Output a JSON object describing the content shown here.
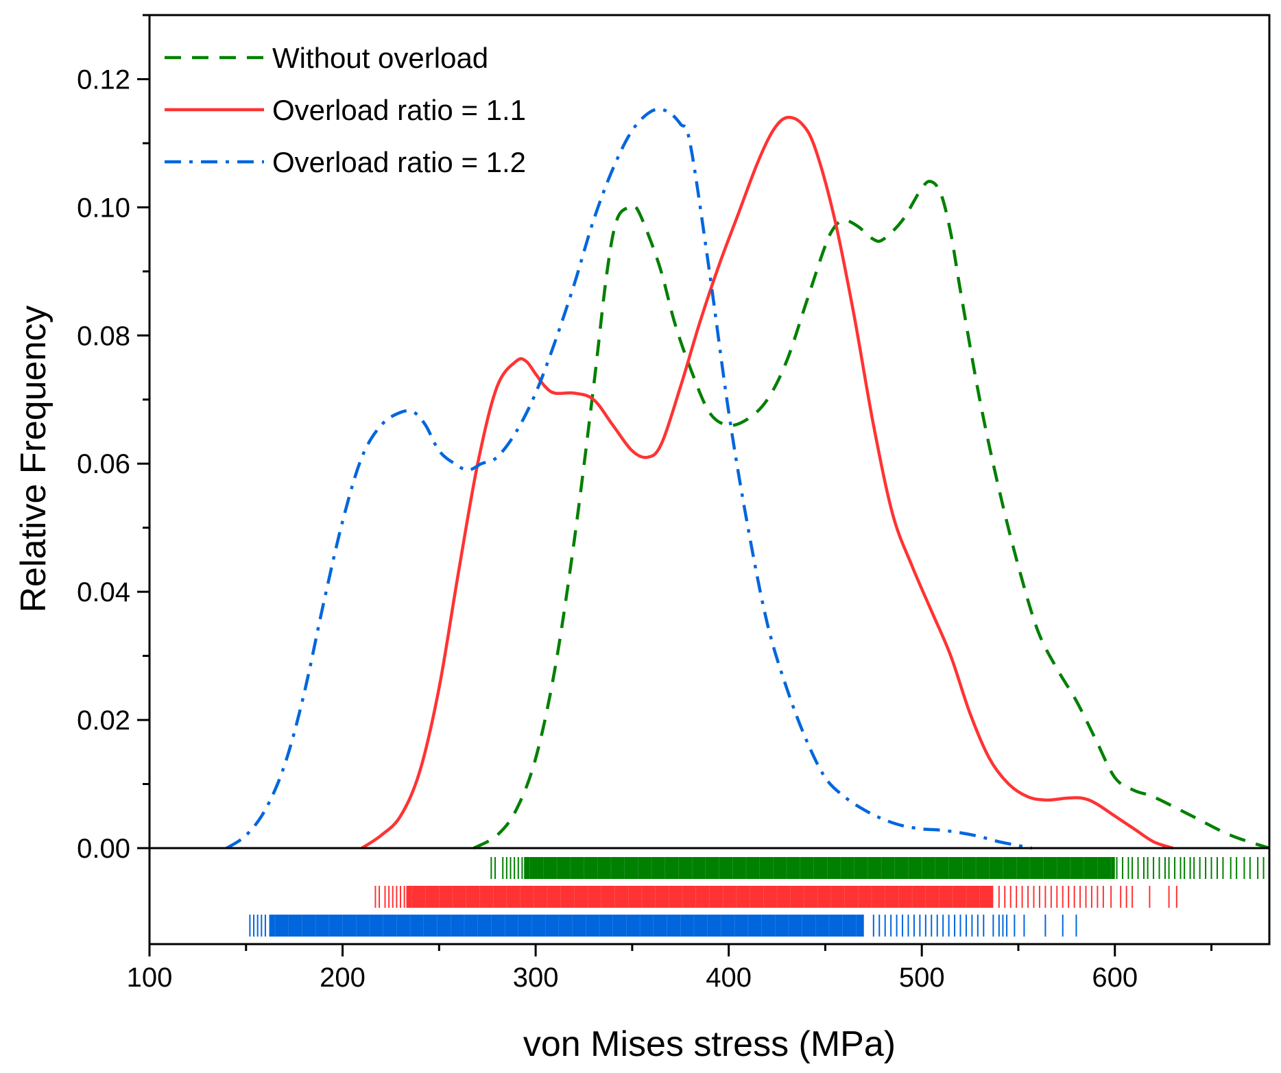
{
  "chart_data": {
    "type": "line",
    "xlabel": "von Mises stress (MPa)",
    "ylabel": "Relative Frequency",
    "xlim": [
      100,
      680
    ],
    "ylim": [
      0,
      0.13
    ],
    "xticks": [
      100,
      200,
      300,
      400,
      500,
      600
    ],
    "xtick_labels": [
      "100",
      "200",
      "300",
      "400",
      "500",
      "600"
    ],
    "yticks": [
      0.0,
      0.02,
      0.04,
      0.06,
      0.08,
      0.1,
      0.12
    ],
    "ytick_labels": [
      "0.00",
      "0.02",
      "0.04",
      "0.06",
      "0.08",
      "0.10",
      "0.12"
    ],
    "legend_position": "top-left",
    "grid": false,
    "series": [
      {
        "name": "Without overload",
        "color": "#008000",
        "style": "dashed",
        "x": [
          268,
          280,
          290,
          300,
          310,
          320,
          330,
          337,
          342,
          348,
          352,
          358,
          365,
          372,
          380,
          390,
          400,
          410,
          420,
          430,
          440,
          450,
          455,
          460,
          467,
          475,
          480,
          490,
          500,
          505,
          510,
          515,
          520,
          530,
          540,
          550,
          560,
          570,
          580,
          590,
          600,
          610,
          620,
          640,
          660,
          680
        ],
        "y": [
          0.0,
          0.002,
          0.006,
          0.014,
          0.028,
          0.048,
          0.072,
          0.09,
          0.098,
          0.1,
          0.1,
          0.096,
          0.09,
          0.082,
          0.075,
          0.068,
          0.066,
          0.067,
          0.07,
          0.076,
          0.085,
          0.094,
          0.097,
          0.098,
          0.097,
          0.095,
          0.095,
          0.098,
          0.103,
          0.104,
          0.102,
          0.096,
          0.087,
          0.07,
          0.056,
          0.044,
          0.034,
          0.028,
          0.023,
          0.017,
          0.011,
          0.009,
          0.008,
          0.005,
          0.002,
          0.0
        ]
      },
      {
        "name": "Overload ratio = 1.1",
        "color": "#ff3333",
        "style": "solid",
        "x": [
          210,
          220,
          230,
          240,
          250,
          260,
          270,
          280,
          290,
          295,
          300,
          305,
          310,
          320,
          330,
          340,
          350,
          358,
          365,
          375,
          385,
          395,
          405,
          415,
          423,
          430,
          438,
          445,
          455,
          465,
          475,
          485,
          495,
          505,
          515,
          525,
          535,
          545,
          555,
          565,
          575,
          583,
          590,
          600,
          610,
          620,
          630
        ],
        "y": [
          0.0,
          0.002,
          0.005,
          0.012,
          0.025,
          0.043,
          0.06,
          0.072,
          0.076,
          0.076,
          0.074,
          0.072,
          0.071,
          0.071,
          0.07,
          0.066,
          0.062,
          0.061,
          0.063,
          0.072,
          0.082,
          0.091,
          0.099,
          0.107,
          0.112,
          0.114,
          0.113,
          0.109,
          0.098,
          0.083,
          0.066,
          0.052,
          0.044,
          0.037,
          0.03,
          0.021,
          0.014,
          0.01,
          0.008,
          0.0075,
          0.0078,
          0.0078,
          0.007,
          0.005,
          0.003,
          0.001,
          0.0
        ],
        "rug": true
      },
      {
        "name": "Overload ratio = 1.2",
        "color": "#0066dd",
        "style": "dashdot",
        "x": [
          140,
          150,
          160,
          170,
          180,
          190,
          200,
          210,
          220,
          230,
          237,
          243,
          250,
          258,
          265,
          272,
          280,
          290,
          300,
          310,
          320,
          330,
          340,
          350,
          360,
          368,
          375,
          380,
          390,
          400,
          410,
          420,
          430,
          440,
          450,
          460,
          470,
          480,
          490,
          500,
          510,
          520,
          530,
          540,
          550,
          557
        ],
        "y": [
          0.0,
          0.002,
          0.006,
          0.013,
          0.024,
          0.038,
          0.051,
          0.061,
          0.066,
          0.068,
          0.068,
          0.066,
          0.062,
          0.06,
          0.059,
          0.06,
          0.061,
          0.065,
          0.071,
          0.079,
          0.088,
          0.098,
          0.106,
          0.112,
          0.115,
          0.115,
          0.113,
          0.11,
          0.09,
          0.068,
          0.05,
          0.035,
          0.025,
          0.017,
          0.011,
          0.008,
          0.006,
          0.0045,
          0.0035,
          0.003,
          0.0028,
          0.0024,
          0.0018,
          0.001,
          0.0004,
          0.0
        ]
      }
    ],
    "rug": [
      {
        "series": "Without overload",
        "color": "#008000",
        "min": 277,
        "max": 677,
        "dense_range": [
          294,
          600
        ],
        "sparse": [
          277,
          279,
          283,
          285,
          287,
          289,
          291,
          293,
          601,
          604,
          607,
          609,
          612,
          615,
          617,
          620,
          623,
          626,
          628,
          631,
          634,
          636,
          639,
          641,
          644,
          647,
          650,
          653,
          656,
          660,
          663,
          667,
          670,
          674,
          677
        ]
      },
      {
        "series": "Overload ratio = 1.1",
        "color": "#ff3333",
        "min": 217,
        "max": 632,
        "dense_range": [
          233,
          537
        ],
        "sparse": [
          217,
          219,
          222,
          224,
          226,
          228,
          230,
          232,
          540,
          543,
          546,
          549,
          552,
          555,
          558,
          561,
          564,
          567,
          570,
          573,
          576,
          579,
          582,
          585,
          588,
          591,
          594,
          598,
          603,
          606,
          609,
          618,
          628,
          632
        ]
      },
      {
        "series": "Overload ratio = 1.2",
        "color": "#0066dd",
        "min": 152,
        "max": 580,
        "dense_range": [
          162,
          470
        ],
        "sparse": [
          152,
          154,
          156,
          158,
          160,
          475,
          478,
          481,
          484,
          487,
          490,
          493,
          496,
          499,
          502,
          505,
          508,
          511,
          514,
          517,
          520,
          523,
          526,
          529,
          532,
          537,
          540,
          542,
          544,
          548,
          553,
          564,
          573,
          580
        ]
      }
    ]
  }
}
